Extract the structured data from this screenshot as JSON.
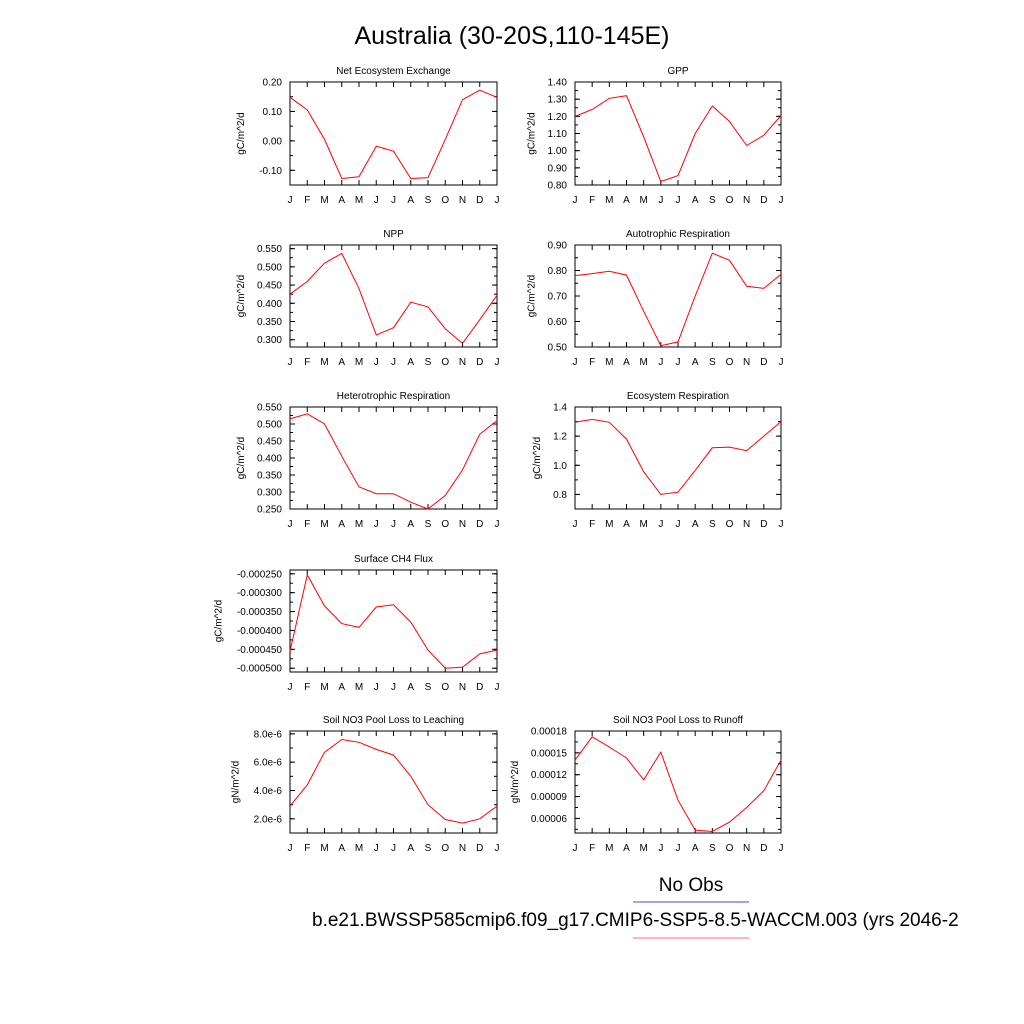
{
  "figure": {
    "title": "Australia (30-20S,110-145E)",
    "legend": {
      "no_obs_label": "No Obs",
      "run_label": "b.e21.BWSSP585cmip6.f09_g17.CMIP6-SSP5-8.5-WACCM.003 (yrs 2046-2",
      "obs_line_color": "#6a6af0",
      "run_line_color": "#ff8a8a"
    }
  },
  "series_color": "#ff0000",
  "months": [
    "J",
    "F",
    "M",
    "A",
    "M",
    "J",
    "J",
    "A",
    "S",
    "O",
    "N",
    "D",
    "J"
  ],
  "chart_data": [
    {
      "type": "line",
      "title": "Net Ecosystem Exchange",
      "ylabel": "gC/m^2/d",
      "xlabel": "",
      "x": [
        "J",
        "F",
        "M",
        "A",
        "M",
        "J",
        "J",
        "A",
        "S",
        "O",
        "N",
        "D",
        "J"
      ],
      "ylim": [
        -0.15,
        0.2
      ],
      "yticks": [
        -0.1,
        0.0,
        0.1,
        0.2
      ],
      "yticklabels": [
        "-0.10",
        "0.00",
        "0.10",
        "0.20"
      ],
      "series": [
        {
          "values": [
            0.148,
            0.105,
            0.005,
            -0.128,
            -0.122,
            -0.018,
            -0.035,
            -0.128,
            -0.125,
            0.005,
            0.14,
            0.172,
            0.148
          ]
        }
      ]
    },
    {
      "type": "line",
      "title": "GPP",
      "ylabel": "gC/m^2/d",
      "xlabel": "",
      "x": [
        "J",
        "F",
        "M",
        "A",
        "M",
        "J",
        "J",
        "A",
        "S",
        "O",
        "N",
        "D",
        "J"
      ],
      "ylim": [
        0.8,
        1.4
      ],
      "yticks": [
        0.8,
        0.9,
        1.0,
        1.1,
        1.2,
        1.3,
        1.4
      ],
      "yticklabels": [
        "0.80",
        "0.90",
        "1.00",
        "1.10",
        "1.20",
        "1.30",
        "1.40"
      ],
      "series": [
        {
          "values": [
            1.2,
            1.24,
            1.305,
            1.32,
            1.08,
            0.82,
            0.855,
            1.1,
            1.26,
            1.17,
            1.03,
            1.09,
            1.205
          ]
        }
      ]
    },
    {
      "type": "line",
      "title": "NPP",
      "ylabel": "gC/m^2/d",
      "xlabel": "",
      "x": [
        "J",
        "F",
        "M",
        "A",
        "M",
        "J",
        "J",
        "A",
        "S",
        "O",
        "N",
        "D",
        "J"
      ],
      "ylim": [
        0.28,
        0.56
      ],
      "yticks": [
        0.3,
        0.35,
        0.4,
        0.45,
        0.5,
        0.55
      ],
      "yticklabels": [
        "0.300",
        "0.350",
        "0.400",
        "0.450",
        "0.500",
        "0.550"
      ],
      "series": [
        {
          "values": [
            0.425,
            0.46,
            0.51,
            0.537,
            0.44,
            0.313,
            0.333,
            0.403,
            0.39,
            0.33,
            0.29,
            0.355,
            0.422
          ]
        }
      ]
    },
    {
      "type": "line",
      "title": "Autotrophic Respiration",
      "ylabel": "gC/m^2/d",
      "xlabel": "",
      "x": [
        "J",
        "F",
        "M",
        "A",
        "M",
        "J",
        "J",
        "A",
        "S",
        "O",
        "N",
        "D",
        "J"
      ],
      "ylim": [
        0.5,
        0.9
      ],
      "yticks": [
        0.5,
        0.6,
        0.7,
        0.8,
        0.9
      ],
      "yticklabels": [
        "0.50",
        "0.60",
        "0.70",
        "0.80",
        "0.90"
      ],
      "series": [
        {
          "values": [
            0.78,
            0.788,
            0.797,
            0.782,
            0.64,
            0.505,
            0.52,
            0.7,
            0.868,
            0.84,
            0.738,
            0.73,
            0.785
          ]
        }
      ]
    },
    {
      "type": "line",
      "title": "Heterotrophic Respiration",
      "ylabel": "gC/m^2/d",
      "xlabel": "",
      "x": [
        "J",
        "F",
        "M",
        "A",
        "M",
        "J",
        "J",
        "A",
        "S",
        "O",
        "N",
        "D",
        "J"
      ],
      "ylim": [
        0.25,
        0.55
      ],
      "yticks": [
        0.25,
        0.3,
        0.35,
        0.4,
        0.45,
        0.5,
        0.55
      ],
      "yticklabels": [
        "0.250",
        "0.300",
        "0.350",
        "0.400",
        "0.450",
        "0.500",
        "0.550"
      ],
      "series": [
        {
          "values": [
            0.515,
            0.53,
            0.5,
            0.405,
            0.315,
            0.295,
            0.295,
            0.27,
            0.25,
            0.29,
            0.365,
            0.47,
            0.51
          ]
        }
      ]
    },
    {
      "type": "line",
      "title": "Ecosystem Respiration",
      "ylabel": "gC/m^2/d",
      "xlabel": "",
      "x": [
        "J",
        "F",
        "M",
        "A",
        "M",
        "J",
        "J",
        "A",
        "S",
        "O",
        "N",
        "D",
        "J"
      ],
      "ylim": [
        0.7,
        1.4
      ],
      "yticks": [
        0.8,
        1.0,
        1.2,
        1.4
      ],
      "yticklabels": [
        "0.8",
        "1.0",
        "1.2",
        "1.4"
      ],
      "series": [
        {
          "values": [
            1.295,
            1.315,
            1.295,
            1.18,
            0.955,
            0.8,
            0.815,
            0.965,
            1.12,
            1.125,
            1.1,
            1.2,
            1.3
          ]
        }
      ]
    },
    {
      "type": "line",
      "title": "Surface CH4 Flux",
      "ylabel": "gC/m^2/d",
      "xlabel": "",
      "x": [
        "J",
        "F",
        "M",
        "A",
        "M",
        "J",
        "J",
        "A",
        "S",
        "O",
        "N",
        "D",
        "J"
      ],
      "ylim": [
        -0.00051,
        -0.00024
      ],
      "yticks": [
        -0.0005,
        -0.00045,
        -0.0004,
        -0.00035,
        -0.0003,
        -0.00025
      ],
      "yticklabels": [
        "-0.000500",
        "-0.000450",
        "-0.000400",
        "-0.000350",
        "-0.000300",
        "-0.000250"
      ],
      "series": [
        {
          "values": [
            -0.000455,
            -0.000253,
            -0.000335,
            -0.000382,
            -0.000392,
            -0.000338,
            -0.000332,
            -0.000378,
            -0.000452,
            -0.0005,
            -0.000497,
            -0.000462,
            -0.000452
          ]
        }
      ]
    },
    {
      "type": "line",
      "title": "Soil NO3 Pool Loss to Leaching",
      "ylabel": "gN/m^2/d",
      "xlabel": "",
      "x": [
        "J",
        "F",
        "M",
        "A",
        "M",
        "J",
        "J",
        "A",
        "S",
        "O",
        "N",
        "D",
        "J"
      ],
      "ylim": [
        1e-06,
        8.2e-06
      ],
      "yticks": [
        2e-06,
        4e-06,
        6e-06,
        8e-06
      ],
      "yticklabels": [
        "2.0e-6",
        "4.0e-6",
        "6.0e-6",
        "8.0e-6"
      ],
      "series": [
        {
          "values": [
            2.9e-06,
            4.4e-06,
            6.7e-06,
            7.6e-06,
            7.4e-06,
            6.9e-06,
            6.5e-06,
            5e-06,
            3e-06,
            1.95e-06,
            1.7e-06,
            2e-06,
            2.9e-06
          ]
        }
      ]
    },
    {
      "type": "line",
      "title": "Soil NO3 Pool Loss to Runoff",
      "ylabel": "gN/m^2/d",
      "xlabel": "",
      "x": [
        "J",
        "F",
        "M",
        "A",
        "M",
        "J",
        "J",
        "A",
        "S",
        "O",
        "N",
        "D",
        "J"
      ],
      "ylim": [
        4e-05,
        0.00018
      ],
      "yticks": [
        6e-05,
        9e-05,
        0.00012,
        0.00015,
        0.00018
      ],
      "yticklabels": [
        "0.00006",
        "0.00009",
        "0.00012",
        "0.00015",
        "0.00018"
      ],
      "series": [
        {
          "values": [
            0.00014,
            0.000172,
            0.000158,
            0.000143,
            0.000113,
            0.000151,
            8.5e-05,
            4.4e-05,
            4.2e-05,
            5.5e-05,
            7.5e-05,
            9.8e-05,
            0.00014
          ]
        }
      ]
    }
  ]
}
